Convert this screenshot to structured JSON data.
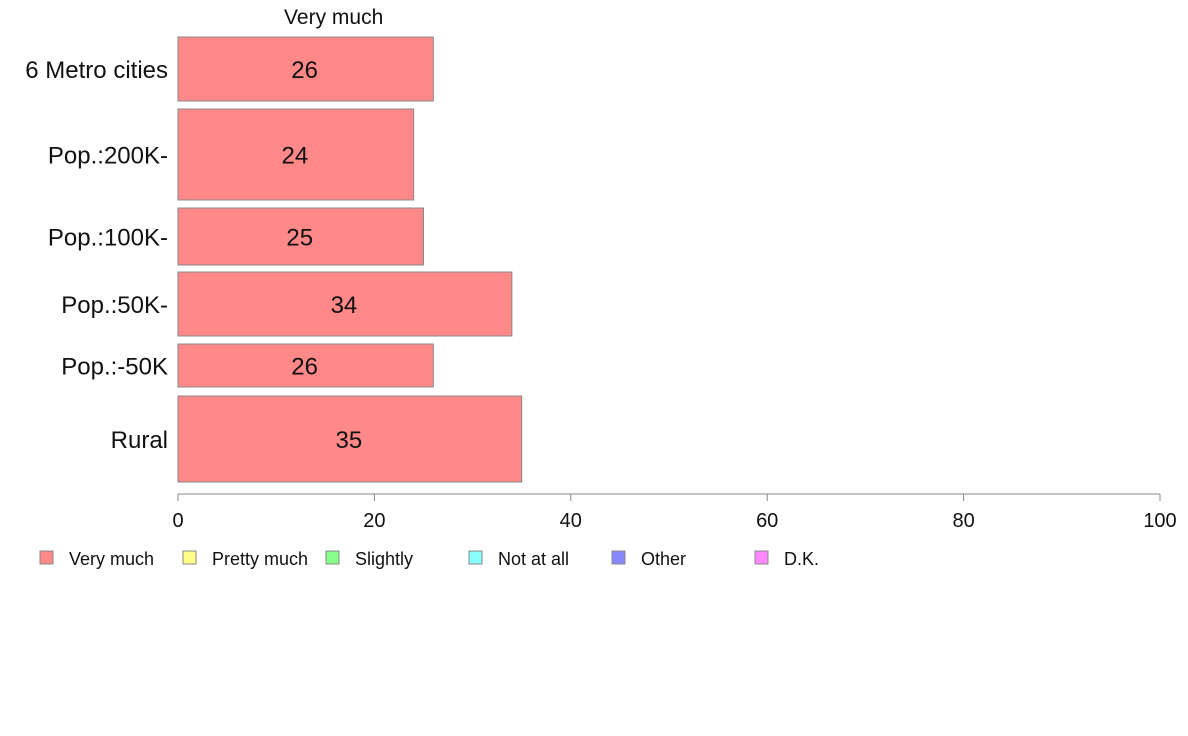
{
  "chart_data": {
    "type": "bar",
    "orientation": "horizontal",
    "stacked": true,
    "series_title": "Very much",
    "categories": [
      "6 Metro cities",
      "Pop.:200K-",
      "Pop.:100K-",
      "Pop.:50K-",
      "Pop.:-50K",
      "Rural"
    ],
    "series": [
      {
        "name": "Very much",
        "values": [
          26,
          24,
          25,
          34,
          26,
          35
        ],
        "color": "#ff8888"
      }
    ],
    "data_labels": [
      "26",
      "24",
      "25",
      "34",
      "26",
      "35"
    ],
    "xlim": [
      0,
      100
    ],
    "xticks": [
      0,
      20,
      40,
      60,
      80,
      100
    ],
    "grid": false,
    "legend": {
      "placement": "bottom",
      "items": [
        {
          "name": "Very much",
          "color": "#ff8888"
        },
        {
          "name": "Pretty much",
          "color": "#ffff88"
        },
        {
          "name": "Slightly",
          "color": "#88ff88"
        },
        {
          "name": "Not at all",
          "color": "#88ffff"
        },
        {
          "name": "Other",
          "color": "#8888ff"
        },
        {
          "name": "D.K.",
          "color": "#ff88ff"
        }
      ]
    }
  }
}
